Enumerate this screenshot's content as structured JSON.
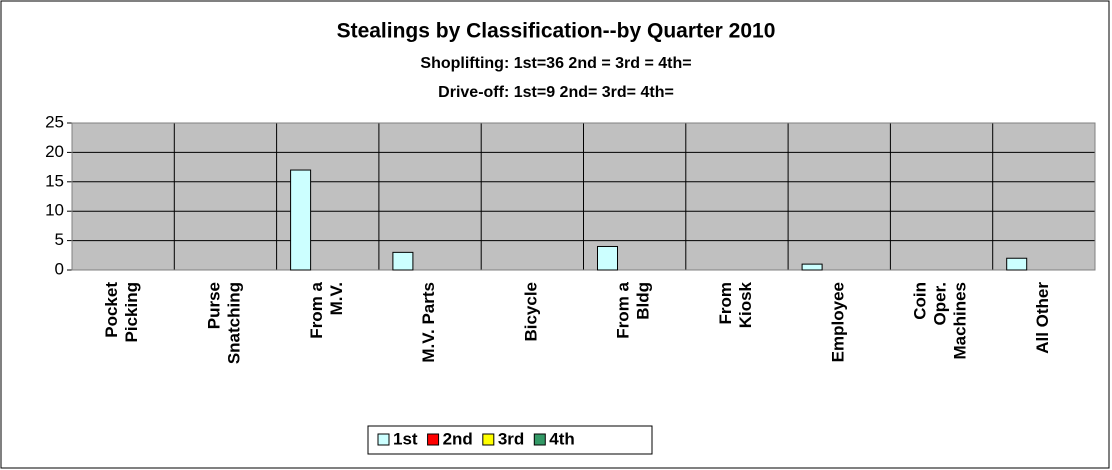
{
  "chart_data": {
    "type": "bar",
    "title": "Stealings by Classification--by Quarter 2010",
    "subtitles": [
      "Shoplifting: 1st=36   2nd =    3rd =    4th=",
      "Drive-off: 1st=9  2nd=   3rd=   4th="
    ],
    "categories": [
      "Pocket\nPicking",
      "Purse\nSnatching",
      "From a\nM.V.",
      "M.V. Parts",
      "Bicycle",
      "From a\nBldg",
      "From\nKiosk",
      "Employee",
      "Coin\nOper.\nMachines",
      "All Other"
    ],
    "series": [
      {
        "name": "1st",
        "color": "#ccffff",
        "values": [
          0,
          0,
          17,
          3,
          0,
          4,
          0,
          1,
          0,
          2
        ]
      },
      {
        "name": "2nd",
        "color": "#ff0000",
        "values": [
          0,
          0,
          0,
          0,
          0,
          0,
          0,
          0,
          0,
          0
        ]
      },
      {
        "name": "3rd",
        "color": "#ffff00",
        "values": [
          0,
          0,
          0,
          0,
          0,
          0,
          0,
          0,
          0,
          0
        ]
      },
      {
        "name": "4th",
        "color": "#339966",
        "values": [
          0,
          0,
          0,
          0,
          0,
          0,
          0,
          0,
          0,
          0
        ]
      }
    ],
    "ylim": [
      0,
      25
    ],
    "yticks": [
      0,
      5,
      10,
      15,
      20,
      25
    ],
    "grid": true,
    "legend": "bottom"
  }
}
